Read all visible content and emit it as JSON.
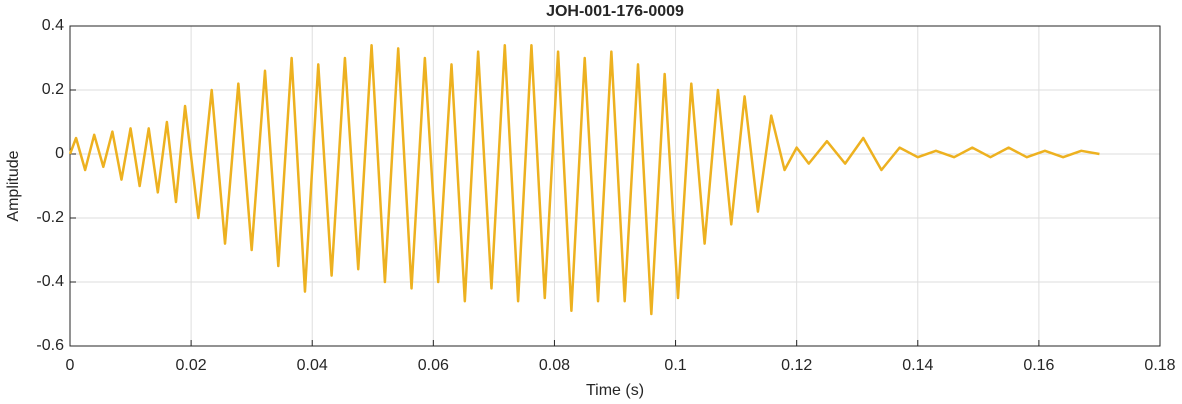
{
  "chart_data": {
    "type": "line",
    "title": "JOH-001-176-0009",
    "x_label": "Time (s)",
    "y_label": "Amplitude",
    "x": [
      0,
      0.001,
      0.0025,
      0.004,
      0.0055,
      0.007,
      0.0085,
      0.01,
      0.0115,
      0.013,
      0.0145,
      0.016,
      0.0175,
      0.019,
      0.0212,
      0.0234,
      0.0256,
      0.0278,
      0.03,
      0.0322,
      0.0344,
      0.0366,
      0.0388,
      0.041,
      0.0432,
      0.0454,
      0.0476,
      0.0498,
      0.052,
      0.0542,
      0.0564,
      0.0586,
      0.0608,
      0.063,
      0.0652,
      0.0674,
      0.0696,
      0.0718,
      0.074,
      0.0762,
      0.0784,
      0.0806,
      0.0828,
      0.085,
      0.0872,
      0.0894,
      0.0916,
      0.0938,
      0.096,
      0.0982,
      0.1004,
      0.1026,
      0.1048,
      0.107,
      0.1092,
      0.1114,
      0.1136,
      0.1158,
      0.118,
      0.12,
      0.122,
      0.125,
      0.128,
      0.131,
      0.134,
      0.137,
      0.14,
      0.143,
      0.146,
      0.149,
      0.152,
      0.155,
      0.158,
      0.161,
      0.164,
      0.167,
      0.17
    ],
    "values": [
      0,
      0.05,
      -0.05,
      0.06,
      -0.04,
      0.07,
      -0.08,
      0.08,
      -0.1,
      0.08,
      -0.12,
      0.1,
      -0.15,
      0.15,
      -0.2,
      0.2,
      -0.28,
      0.22,
      -0.3,
      0.26,
      -0.35,
      0.3,
      -0.43,
      0.28,
      -0.38,
      0.3,
      -0.36,
      0.34,
      -0.4,
      0.33,
      -0.42,
      0.3,
      -0.4,
      0.28,
      -0.46,
      0.32,
      -0.42,
      0.34,
      -0.46,
      0.34,
      -0.45,
      0.32,
      -0.49,
      0.3,
      -0.46,
      0.32,
      -0.46,
      0.28,
      -0.5,
      0.25,
      -0.45,
      0.22,
      -0.28,
      0.2,
      -0.22,
      0.18,
      -0.18,
      0.12,
      -0.05,
      0.02,
      -0.03,
      0.04,
      -0.03,
      0.05,
      -0.05,
      0.02,
      -0.01,
      0.01,
      -0.01,
      0.02,
      -0.01,
      0.02,
      -0.01,
      0.01,
      -0.01,
      0.01,
      0
    ],
    "color": "#EDB120",
    "xlim": [
      0,
      0.18
    ],
    "xticks": [
      0,
      0.02,
      0.04,
      0.06,
      0.08,
      0.1,
      0.12,
      0.14,
      0.16,
      0.18
    ],
    "ylim": [
      -0.6,
      0.4
    ],
    "yticks": [
      -0.6,
      -0.4,
      -0.2,
      0,
      0.2,
      0.4
    ],
    "grid": true
  }
}
